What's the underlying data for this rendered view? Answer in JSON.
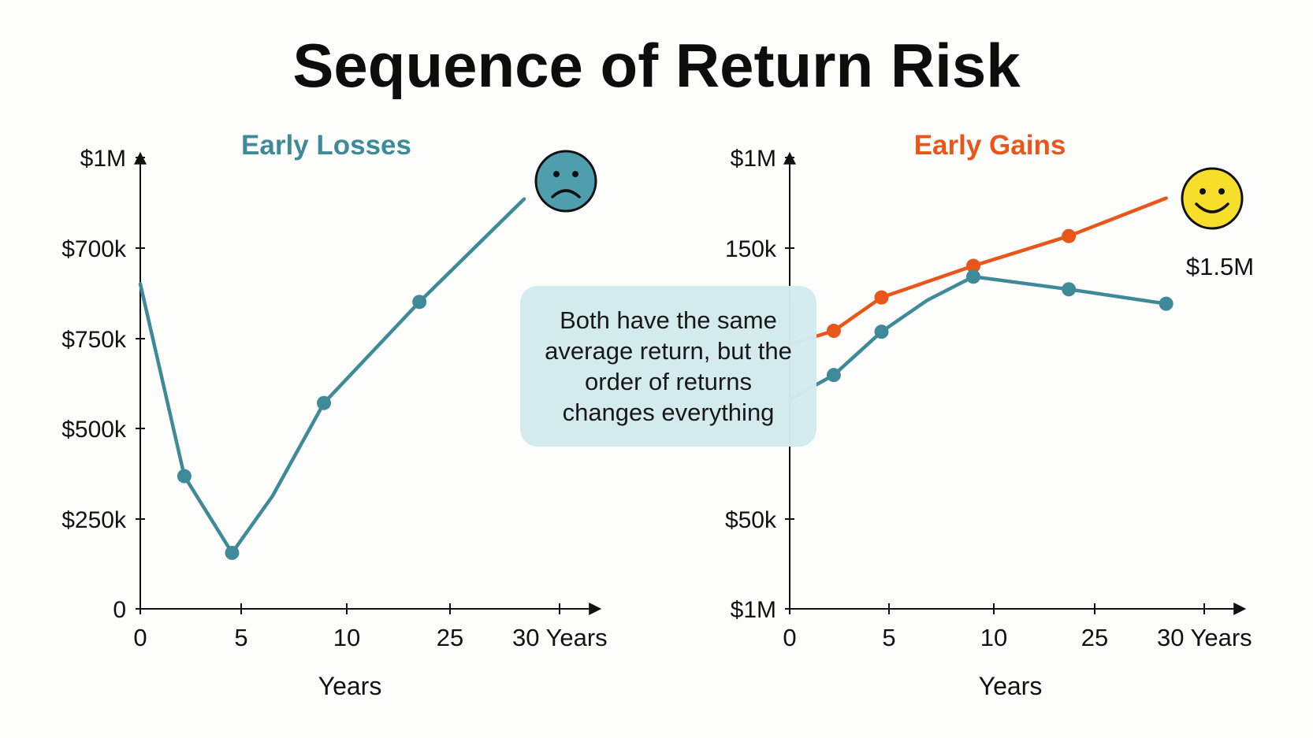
{
  "title": "Sequence of Return Risk",
  "callout": "Both have the same average return, but the order of returns changes everything",
  "colors": {
    "teal": "#3f8a99",
    "orange": "#e8561a",
    "face_sad": "#4f9eae",
    "face_happy": "#f7de2a"
  },
  "chart_data": [
    {
      "type": "line",
      "title": "Early Losses",
      "xlabel": "Years",
      "ylabel": "",
      "x_ticks": [
        "0",
        "5",
        "10",
        "25",
        "30 Years"
      ],
      "y_ticks": [
        "0",
        "$250k",
        "$500k",
        "$750k",
        "$700k",
        "$1M"
      ],
      "indicator": "sad-face-icon",
      "series": [
        {
          "color": "#3f8a99",
          "points": [
            [
              0,
              3.6
            ],
            [
              2.4,
              1.47
            ],
            [
              5,
              0.62
            ],
            [
              7.2,
              1.25
            ],
            [
              10,
              2.28
            ],
            [
              15.2,
              3.4
            ],
            [
              20.9,
              4.54
            ]
          ],
          "markers": [
            1,
            2,
            4,
            5
          ]
        }
      ]
    },
    {
      "type": "line",
      "title": "Early Gains",
      "xlabel": "Years",
      "ylabel": "",
      "x_ticks": [
        "0",
        "5",
        "10",
        "25",
        "30 Years"
      ],
      "y_ticks": [
        "$1M",
        "$50k",
        "150k",
        "$1M"
      ],
      "indicator": "happy-face-icon",
      "annotation": "$1.5M",
      "series": [
        {
          "color": "#e8561a",
          "points": [
            [
              0,
              2.93
            ],
            [
              2.4,
              3.08
            ],
            [
              5,
              3.45
            ],
            [
              10,
              3.8
            ],
            [
              15.2,
              4.13
            ],
            [
              20.5,
              4.55
            ]
          ],
          "markers": [
            1,
            2,
            3,
            4
          ]
        },
        {
          "color": "#3f8a99",
          "points": [
            [
              0,
              2.32
            ],
            [
              2.4,
              2.59
            ],
            [
              5,
              3.07
            ],
            [
              7.5,
              3.42
            ],
            [
              10,
              3.68
            ],
            [
              15.2,
              3.54
            ],
            [
              20.5,
              3.38
            ]
          ],
          "markers": [
            1,
            2,
            4,
            5,
            6
          ]
        }
      ]
    }
  ]
}
